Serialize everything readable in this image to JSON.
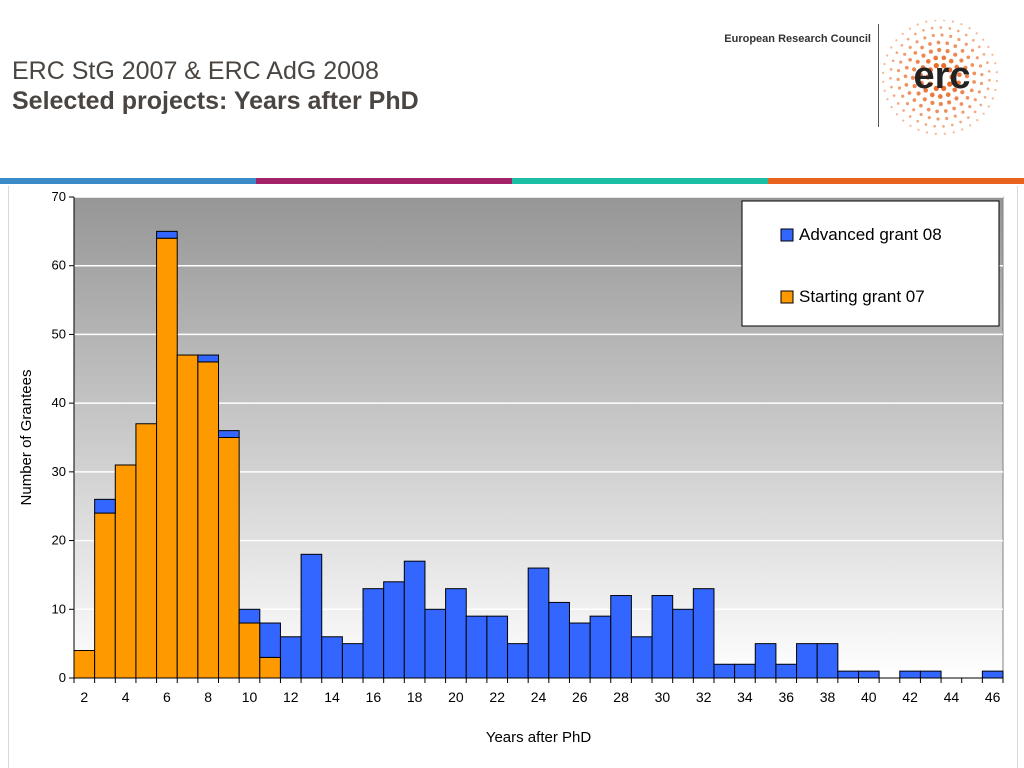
{
  "header": {
    "title_line1": "ERC StG 2007 & ERC AdG 2008",
    "title_line2": "Selected projects: Years after PhD",
    "org_name": "European Research Council",
    "logo_text": "erc"
  },
  "colors": {
    "title": "#4a4541",
    "band": [
      "#3a8bc8",
      "#a3226a",
      "#1cbfa5",
      "#e8641e"
    ],
    "logo_orange": "#e8641e",
    "advanced": "#3366ff",
    "starting": "#ff9900"
  },
  "chart_data": {
    "type": "bar",
    "stacked": true,
    "xlabel": "Years after PhD",
    "ylabel": "Number of Grantees",
    "ylim": [
      0,
      70
    ],
    "yticks": [
      0,
      10,
      20,
      30,
      40,
      50,
      60,
      70
    ],
    "x": [
      2,
      3,
      4,
      5,
      6,
      7,
      8,
      9,
      10,
      11,
      12,
      13,
      14,
      15,
      16,
      17,
      18,
      19,
      20,
      21,
      22,
      23,
      24,
      25,
      26,
      27,
      28,
      29,
      30,
      31,
      32,
      33,
      34,
      35,
      36,
      37,
      38,
      39,
      40,
      41,
      42,
      43,
      44,
      45,
      46
    ],
    "xtick_labels": [
      "2",
      "4",
      "6",
      "8",
      "10",
      "12",
      "14",
      "16",
      "18",
      "20",
      "22",
      "24",
      "26",
      "28",
      "30",
      "32",
      "34",
      "36",
      "38",
      "40",
      "42",
      "44",
      "46"
    ],
    "grid": true,
    "legend_position": "top-right",
    "series": [
      {
        "name": "Starting grant 07",
        "color": "#ff9900",
        "values": [
          4,
          24,
          31,
          37,
          64,
          47,
          46,
          35,
          8,
          3,
          0,
          0,
          0,
          0,
          0,
          0,
          0,
          0,
          0,
          0,
          0,
          0,
          0,
          0,
          0,
          0,
          0,
          0,
          0,
          0,
          0,
          0,
          0,
          0,
          0,
          0,
          0,
          0,
          0,
          0,
          0,
          0,
          0,
          0,
          0
        ]
      },
      {
        "name": "Advanced grant 08",
        "color": "#3366ff",
        "values": [
          0,
          2,
          0,
          0,
          1,
          0,
          1,
          1,
          2,
          5,
          6,
          18,
          6,
          5,
          13,
          14,
          17,
          10,
          13,
          9,
          9,
          5,
          16,
          11,
          8,
          9,
          12,
          6,
          12,
          10,
          13,
          2,
          2,
          5,
          2,
          5,
          5,
          1,
          1,
          0,
          1,
          1,
          0,
          0,
          1
        ]
      }
    ],
    "legend_order": [
      "Advanced grant 08",
      "Starting grant 07"
    ]
  }
}
